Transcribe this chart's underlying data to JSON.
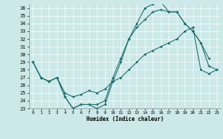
{
  "xlabel": "Humidex (Indice chaleur)",
  "background_color": "#cce8e8",
  "grid_color": "#ffffff",
  "line_color": "#1a6b6b",
  "xlim": [
    -0.5,
    23.5
  ],
  "ylim": [
    23,
    36.5
  ],
  "yticks": [
    23,
    24,
    25,
    26,
    27,
    28,
    29,
    30,
    31,
    32,
    33,
    34,
    35,
    36
  ],
  "xticks": [
    0,
    1,
    2,
    3,
    4,
    5,
    6,
    7,
    8,
    9,
    10,
    11,
    12,
    13,
    14,
    15,
    16,
    17,
    18,
    19,
    20,
    21,
    22,
    23
  ],
  "line1_x": [
    0,
    1,
    2,
    3,
    4,
    5,
    6,
    7,
    8,
    9,
    10,
    11,
    12,
    13,
    14,
    15,
    16,
    17,
    18,
    19,
    20,
    21,
    22
  ],
  "line1_y": [
    29,
    27,
    26.5,
    27,
    24.5,
    23.0,
    23.5,
    23.5,
    23.0,
    23.5,
    26.5,
    29.0,
    32.0,
    34.0,
    36.0,
    36.5,
    36.8,
    35.5,
    35.5,
    34.0,
    33.0,
    31.5,
    29.5
  ],
  "line2_x": [
    0,
    1,
    2,
    3,
    4,
    5,
    6,
    7,
    8,
    9,
    10,
    11,
    12,
    13,
    14,
    15,
    16,
    17,
    18,
    19,
    20,
    21,
    22,
    23
  ],
  "line2_y": [
    29,
    27,
    26.5,
    27,
    25.0,
    24.5,
    24.8,
    25.3,
    25.0,
    25.5,
    26.5,
    27.0,
    28.0,
    29.0,
    30.0,
    30.5,
    31.0,
    31.5,
    32.0,
    33.0,
    33.5,
    28.0,
    27.5,
    28.0
  ],
  "line3_x": [
    0,
    1,
    2,
    3,
    4,
    5,
    6,
    7,
    8,
    9,
    10,
    11,
    12,
    13,
    14,
    15,
    16,
    17,
    18,
    19,
    20,
    21,
    22,
    23
  ],
  "line3_y": [
    29,
    27,
    26.5,
    27,
    24.5,
    23.0,
    23.5,
    23.5,
    23.5,
    24.0,
    27.0,
    29.5,
    32.0,
    33.5,
    34.5,
    35.5,
    35.8,
    35.5,
    35.5,
    34.0,
    33.0,
    31.5,
    28.5,
    28.0
  ]
}
